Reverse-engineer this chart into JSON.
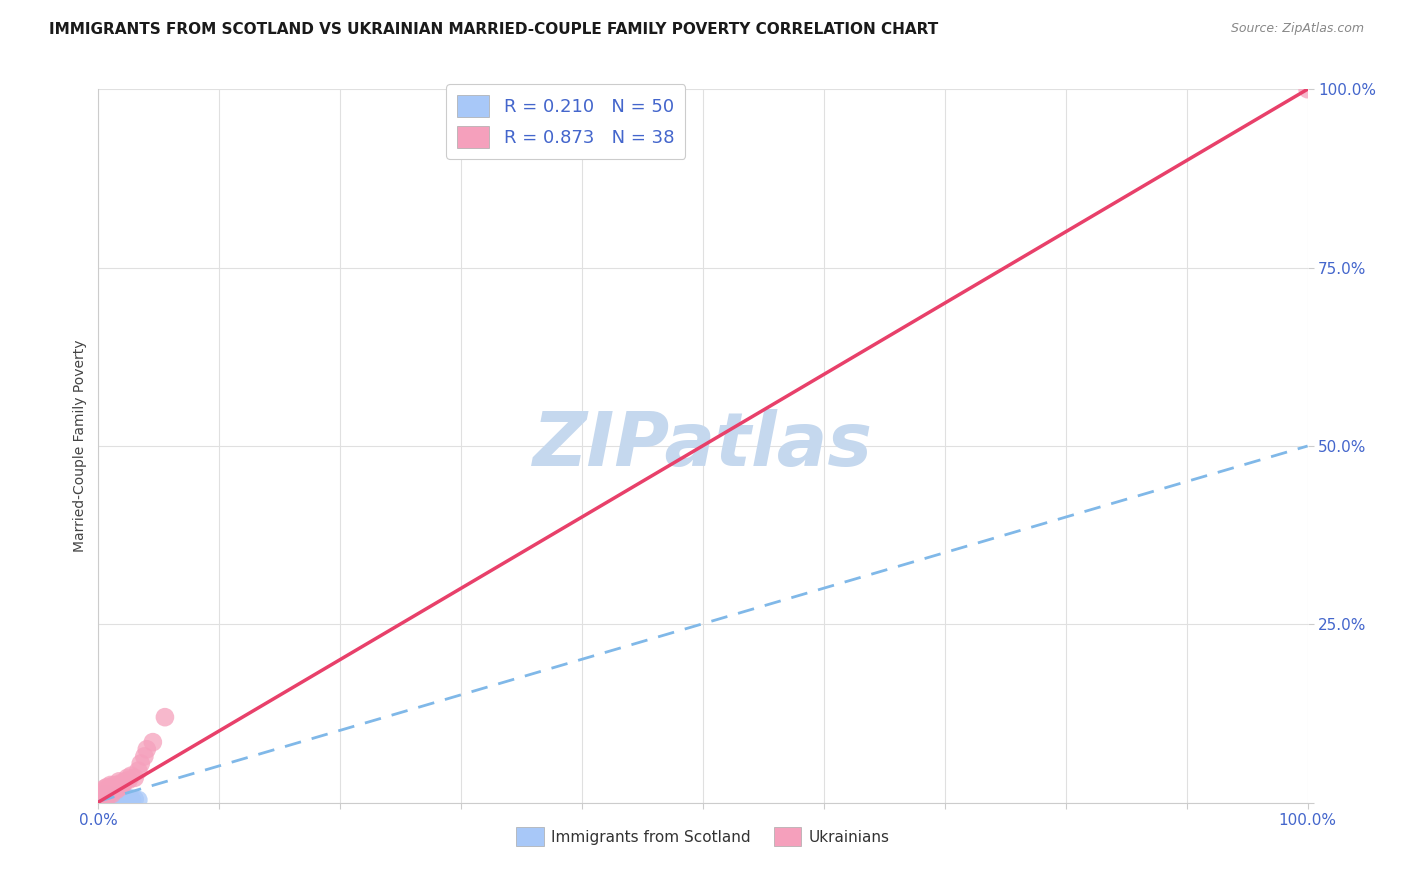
{
  "title": "IMMIGRANTS FROM SCOTLAND VS UKRAINIAN MARRIED-COUPLE FAMILY POVERTY CORRELATION CHART",
  "source_text": "Source: ZipAtlas.com",
  "ylabel": "Married-Couple Family Poverty",
  "watermark": "ZIPatlas",
  "xlim": [
    0.0,
    1.0
  ],
  "ylim": [
    0.0,
    1.0
  ],
  "scotland_R": 0.21,
  "scotland_N": 50,
  "ukraine_R": 0.873,
  "ukraine_N": 38,
  "scotland_color": "#a8c8f8",
  "ukraine_color": "#f5a0bc",
  "scotland_line_color": "#80b8e8",
  "ukraine_line_color": "#e8406a",
  "title_color": "#1a1a1a",
  "axis_label_color": "#444444",
  "tick_color": "#4466cc",
  "grid_color": "#e0e0e0",
  "background_color": "#ffffff",
  "watermark_color": "#c5d8ee",
  "legend_border_color": "#cccccc",
  "source_color": "#888888",
  "scotland_x": [
    0.001,
    0.002,
    0.002,
    0.003,
    0.003,
    0.003,
    0.004,
    0.004,
    0.004,
    0.004,
    0.005,
    0.005,
    0.005,
    0.005,
    0.006,
    0.006,
    0.006,
    0.007,
    0.007,
    0.007,
    0.008,
    0.008,
    0.008,
    0.009,
    0.009,
    0.01,
    0.01,
    0.01,
    0.011,
    0.011,
    0.012,
    0.012,
    0.013,
    0.013,
    0.014,
    0.015,
    0.015,
    0.016,
    0.017,
    0.018,
    0.019,
    0.02,
    0.021,
    0.022,
    0.024,
    0.025,
    0.027,
    0.028,
    0.03,
    0.033
  ],
  "scotland_y": [
    0.001,
    0.003,
    0.008,
    0.002,
    0.005,
    0.009,
    0.001,
    0.004,
    0.007,
    0.01,
    0.002,
    0.005,
    0.008,
    0.012,
    0.003,
    0.006,
    0.01,
    0.002,
    0.006,
    0.009,
    0.003,
    0.007,
    0.011,
    0.004,
    0.008,
    0.003,
    0.006,
    0.01,
    0.002,
    0.008,
    0.004,
    0.009,
    0.003,
    0.007,
    0.005,
    0.003,
    0.008,
    0.004,
    0.006,
    0.005,
    0.007,
    0.004,
    0.006,
    0.005,
    0.007,
    0.004,
    0.006,
    0.003,
    0.005,
    0.004
  ],
  "ukraine_x": [
    0.001,
    0.002,
    0.003,
    0.004,
    0.005,
    0.005,
    0.006,
    0.006,
    0.007,
    0.007,
    0.008,
    0.008,
    0.009,
    0.01,
    0.01,
    0.011,
    0.011,
    0.012,
    0.013,
    0.014,
    0.015,
    0.016,
    0.017,
    0.018,
    0.019,
    0.02,
    0.022,
    0.024,
    0.025,
    0.027,
    0.03,
    0.033,
    0.035,
    0.038,
    0.04,
    0.045,
    0.055,
    1.0
  ],
  "ukraine_y": [
    0.005,
    0.008,
    0.012,
    0.01,
    0.015,
    0.02,
    0.012,
    0.018,
    0.015,
    0.022,
    0.01,
    0.018,
    0.02,
    0.015,
    0.025,
    0.012,
    0.022,
    0.02,
    0.025,
    0.022,
    0.018,
    0.025,
    0.03,
    0.022,
    0.028,
    0.025,
    0.03,
    0.035,
    0.032,
    0.038,
    0.035,
    0.045,
    0.055,
    0.065,
    0.075,
    0.085,
    0.12,
    1.0
  ],
  "scotland_trendline_x": [
    0.0,
    1.0
  ],
  "scotland_trendline_y": [
    0.002,
    0.5
  ],
  "ukraine_trendline_x": [
    0.0,
    1.0
  ],
  "ukraine_trendline_y": [
    0.001,
    1.0
  ]
}
